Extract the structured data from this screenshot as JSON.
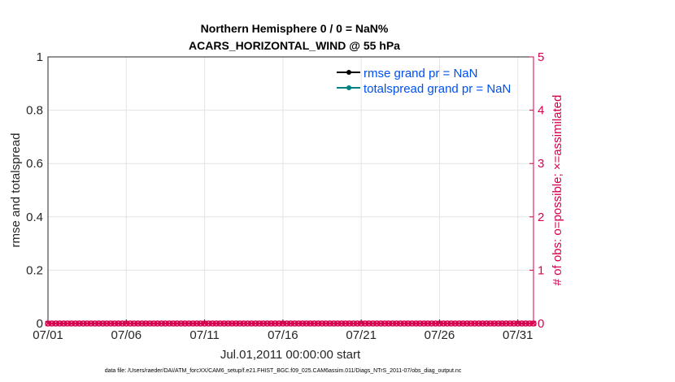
{
  "chart_data": {
    "type": "line",
    "title": [
      "Northern Hemisphere 0 / 0 = NaN%",
      "ACARS_HORIZONTAL_WIND @ 55 hPa"
    ],
    "xlabel": "Jul.01,2011 00:00:00 start",
    "ylabel": "rmse and totalspread",
    "ylabel_right": "# of obs: o=possible; ×=assimilated",
    "xlim": [
      "07/01",
      "08/01"
    ],
    "ylim": [
      0,
      1
    ],
    "ylim_right": [
      0,
      5
    ],
    "x_ticks": [
      "07/01",
      "07/06",
      "07/11",
      "07/16",
      "07/21",
      "07/26",
      "07/31"
    ],
    "y_ticks": [
      "0",
      "0.2",
      "0.4",
      "0.6",
      "0.8",
      "1"
    ],
    "y_ticks_right": [
      "0",
      "1",
      "2",
      "3",
      "4",
      "5"
    ],
    "grid": true,
    "legend_placement": "top-right",
    "series": [
      {
        "name": "rmse grand pr = NaN",
        "color": "#000000",
        "values": []
      },
      {
        "name": "totalspread grand pr = NaN",
        "color": "#008080",
        "values": []
      }
    ],
    "obs_counts": {
      "possible": 0,
      "assimilated": 0,
      "interval_hours": 6,
      "color": "#d6004f"
    },
    "footer": "data file: /Users/raeder/DAI/ATM_forcXX/CAM6_setup/f.e21.FHIST_BGC.f09_025.CAM6assim.011/Diags_NTrS_2011-07/obs_diag_output.nc"
  }
}
